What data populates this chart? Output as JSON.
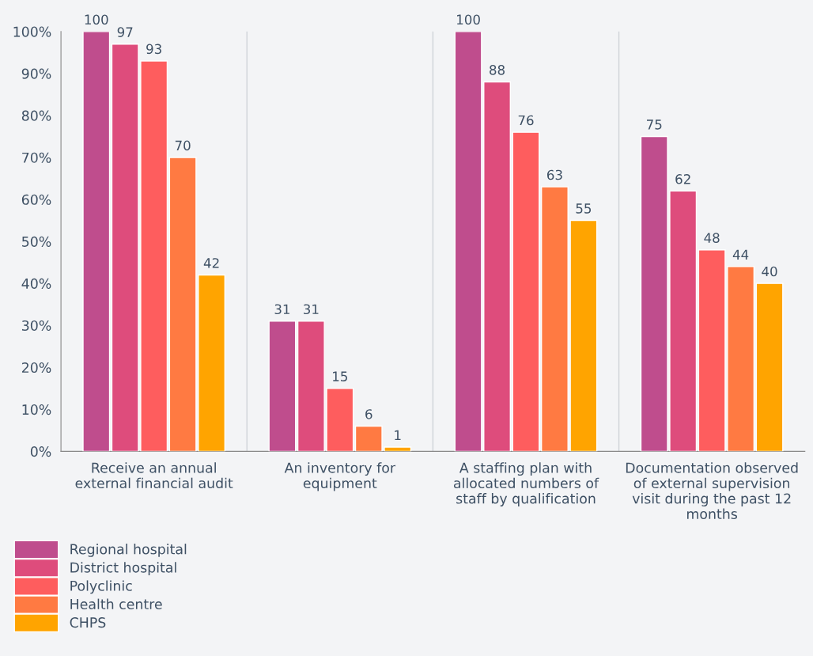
{
  "chart_data": {
    "type": "bar",
    "categories": [
      "Receive an annual\nexternal financial audit",
      "An inventory for\nequipment",
      "A staffing plan with\nallocated numbers of\nstaff by qualification",
      "Documentation observed\nof external supervision\nvisit during the past 12\nmonths"
    ],
    "series": [
      {
        "name": "Regional hospital",
        "color": "#bf4d8d",
        "values": [
          100,
          31,
          100,
          75
        ]
      },
      {
        "name": "District hospital",
        "color": "#de4c7c",
        "values": [
          97,
          31,
          88,
          62
        ]
      },
      {
        "name": "Polyclinic",
        "color": "#fe5d5e",
        "values": [
          93,
          15,
          76,
          48
        ]
      },
      {
        "name": "Health centre",
        "color": "#ff7a42",
        "values": [
          70,
          6,
          63,
          44
        ]
      },
      {
        "name": "CHPS",
        "color": "#ffa400",
        "values": [
          42,
          1,
          55,
          40
        ]
      }
    ],
    "ylim": [
      0,
      100
    ],
    "yticks": [
      {
        "value": 0,
        "label": "0%"
      },
      {
        "value": 10,
        "label": "10%"
      },
      {
        "value": 20,
        "label": "20%"
      },
      {
        "value": 30,
        "label": "30%"
      },
      {
        "value": 40,
        "label": "40%"
      },
      {
        "value": 50,
        "label": "50%"
      },
      {
        "value": 60,
        "label": "60%"
      },
      {
        "value": 70,
        "label": "70%"
      },
      {
        "value": 80,
        "label": "80%"
      },
      {
        "value": 90,
        "label": "90%"
      },
      {
        "value": 100,
        "label": "100%"
      }
    ],
    "data_labels": true,
    "grid": "x",
    "legend": "bottom left"
  }
}
